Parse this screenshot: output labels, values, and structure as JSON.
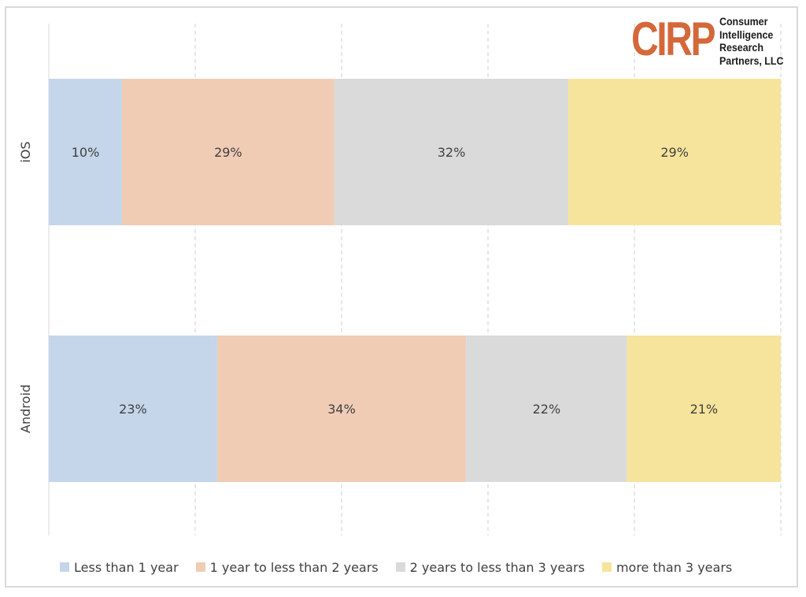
{
  "logo": {
    "wordmark": "CIRP",
    "lines": [
      "Consumer",
      "Intelligence",
      "Research",
      "Partners, LLC"
    ]
  },
  "colors": {
    "less_than_1": "#c5d5ea",
    "one_to_two": "#f0ccb5",
    "two_to_three": "#dadada",
    "more_than_3": "#f6e49c"
  },
  "chart_data": {
    "type": "bar",
    "orientation": "horizontal",
    "stacked": "100%",
    "categories": [
      "iOS",
      "Android"
    ],
    "series": [
      {
        "name": "Less than 1 year",
        "values": [
          10,
          23
        ],
        "labels": [
          "10%",
          "23%"
        ],
        "color": "#c5d5ea"
      },
      {
        "name": "1 year to less than 2 years",
        "values": [
          29,
          34
        ],
        "labels": [
          "29%",
          "34%"
        ],
        "color": "#f0ccb5"
      },
      {
        "name": "2 years to less than 3 years",
        "values": [
          32,
          22
        ],
        "labels": [
          "32%",
          "22%"
        ],
        "color": "#dadada"
      },
      {
        "name": "more than 3 years",
        "values": [
          29,
          21
        ],
        "labels": [
          "29%",
          "21%"
        ],
        "color": "#f6e49c"
      }
    ],
    "xlim": [
      0,
      100
    ],
    "grid": "vertical dashed",
    "legend_position": "bottom"
  }
}
